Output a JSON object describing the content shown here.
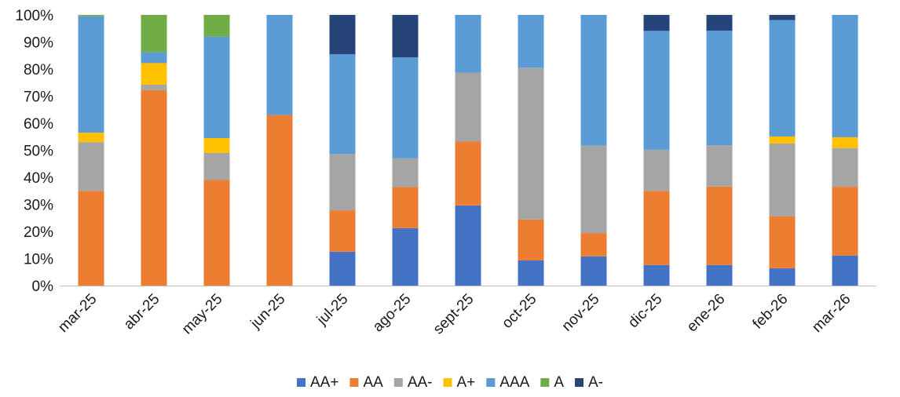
{
  "chart_data": {
    "type": "bar",
    "stacked": "percent",
    "categories": [
      "mar-25",
      "abr-25",
      "may-25",
      "jun-25",
      "jul-25",
      "ago-25",
      "sept-25",
      "oct-25",
      "nov-25",
      "dic-25",
      "ene-26",
      "feb-26",
      "mar-26"
    ],
    "series": [
      {
        "name": "AA+",
        "color": "#4472C4",
        "values": [
          0,
          0,
          0,
          0,
          12.5,
          21.2,
          29.6,
          9.3,
          10.8,
          7.6,
          7.6,
          6.4,
          11.1
        ]
      },
      {
        "name": "AA",
        "color": "#ED7D31",
        "values": [
          35,
          72.2,
          39,
          63,
          15.3,
          15.2,
          23.6,
          15.1,
          8.6,
          27.4,
          29,
          19.2,
          25.4
        ]
      },
      {
        "name": "AA-",
        "color": "#A5A5A5",
        "values": [
          18,
          2,
          10,
          0,
          20.8,
          10.6,
          25.5,
          56.1,
          32.3,
          15.2,
          15.2,
          26.9,
          14.3
        ]
      },
      {
        "name": "A+",
        "color": "#FFC000",
        "values": [
          3.5,
          8,
          5.5,
          0,
          0,
          0,
          0,
          0,
          0,
          0,
          0,
          2.6,
          4
        ]
      },
      {
        "name": "AAA",
        "color": "#5B9BD5",
        "values": [
          43,
          4,
          37.5,
          37,
          36.9,
          37.3,
          21.3,
          19.5,
          48.3,
          43.9,
          42.4,
          43,
          45.2
        ]
      },
      {
        "name": "A",
        "color": "#70AD47",
        "values": [
          0.5,
          13.8,
          8,
          0,
          0,
          0,
          0,
          0,
          0,
          0,
          0,
          0,
          0
        ]
      },
      {
        "name": "A-",
        "color": "#264478",
        "values": [
          0,
          0,
          0,
          0,
          14.5,
          15.7,
          0,
          0,
          0,
          5.9,
          5.8,
          1.9,
          0
        ]
      }
    ],
    "yticks": [
      "0%",
      "10%",
      "20%",
      "30%",
      "40%",
      "50%",
      "60%",
      "70%",
      "80%",
      "90%",
      "100%"
    ],
    "ylim": [
      0,
      100
    ],
    "grid": false,
    "legend": "bottom",
    "title": "",
    "xlabel": "",
    "ylabel": ""
  }
}
